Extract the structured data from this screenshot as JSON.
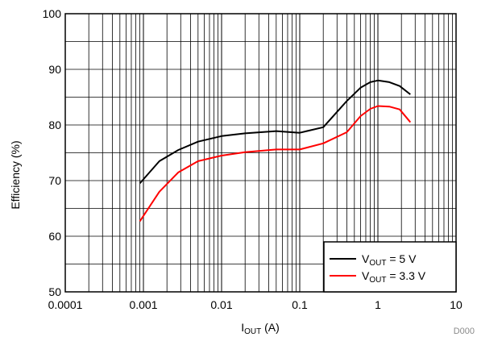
{
  "chart_data": {
    "type": "line",
    "x_scale": "log",
    "xlim": [
      0.0001,
      10
    ],
    "ylim": [
      50,
      100
    ],
    "grid": true,
    "xlabel": {
      "main": "I",
      "sub": "OUT",
      "unit": " (A)"
    },
    "ylabel": "Efficiency (%)",
    "x_ticks": [
      "0.0001",
      "0.001",
      "0.01",
      "0.1",
      "1",
      "10"
    ],
    "y_ticks": [
      "50",
      "60",
      "70",
      "80",
      "90",
      "100"
    ],
    "legend_position": "bottom-right",
    "figure_id": "D000",
    "series": [
      {
        "name": "VOUT = 5 V",
        "label": {
          "main": "V",
          "sub": "OUT",
          "rest": " = 5 V"
        },
        "color": "#000000",
        "x": [
          0.0009,
          0.0016,
          0.0028,
          0.005,
          0.01,
          0.02,
          0.05,
          0.1,
          0.2,
          0.4,
          0.6,
          0.8,
          1.0,
          1.4,
          1.9,
          2.6
        ],
        "y": [
          69.5,
          73.5,
          75.5,
          77.0,
          78.0,
          78.5,
          78.9,
          78.6,
          79.6,
          84.3,
          86.7,
          87.7,
          88.0,
          87.7,
          87.0,
          85.5
        ]
      },
      {
        "name": "VOUT = 3.3 V",
        "label": {
          "main": "V",
          "sub": "OUT",
          "rest": " = 3.3 V"
        },
        "color": "#ff0000",
        "x": [
          0.0009,
          0.0016,
          0.0028,
          0.005,
          0.01,
          0.02,
          0.05,
          0.1,
          0.2,
          0.4,
          0.6,
          0.8,
          1.0,
          1.4,
          1.9,
          2.6
        ],
        "y": [
          62.7,
          68.0,
          71.5,
          73.5,
          74.5,
          75.1,
          75.6,
          75.6,
          76.7,
          78.7,
          81.6,
          82.9,
          83.4,
          83.3,
          82.8,
          80.5
        ]
      }
    ]
  }
}
